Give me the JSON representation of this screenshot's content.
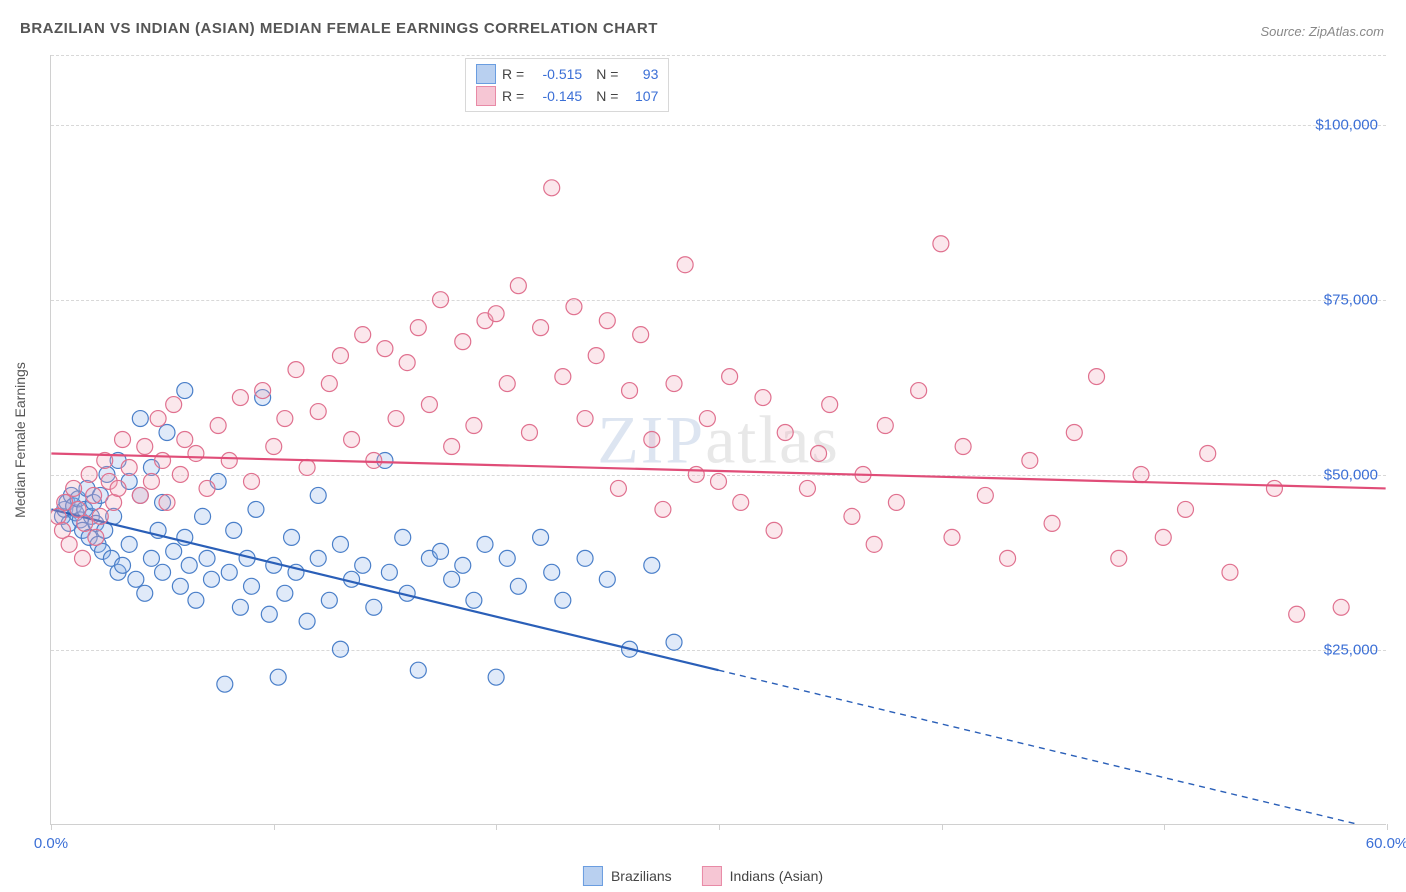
{
  "title": "BRAZILIAN VS INDIAN (ASIAN) MEDIAN FEMALE EARNINGS CORRELATION CHART",
  "source_label": "Source: ZipAtlas.com",
  "y_axis_label": "Median Female Earnings",
  "watermark_bold": "ZIP",
  "watermark_thin": "atlas",
  "chart": {
    "type": "scatter",
    "xlim": [
      0,
      60
    ],
    "ylim": [
      0,
      110000
    ],
    "x_tick_positions": [
      0,
      10,
      20,
      30,
      40,
      50,
      60
    ],
    "x_tick_labels": {
      "0": "0.0%",
      "60": "60.0%"
    },
    "y_gridlines": [
      25000,
      50000,
      75000,
      100000,
      110000
    ],
    "y_tick_labels": {
      "25000": "$25,000",
      "50000": "$50,000",
      "75000": "$75,000",
      "100000": "$100,000"
    },
    "background_color": "#ffffff",
    "grid_color": "#d8d8d8",
    "axis_color": "#d0d0d0",
    "tick_label_color": "#3b6fd6",
    "marker_radius": 8,
    "marker_stroke_width": 1.2,
    "marker_fill_opacity": 0.28,
    "trend_line_width": 2.2,
    "trend_dash_pattern": "6,5"
  },
  "legend_top": {
    "r_label": "R =",
    "n_label": "N =",
    "rows": [
      {
        "swatch_fill": "#b9d0f0",
        "swatch_stroke": "#6a9de0",
        "r": "-0.515",
        "n": "93"
      },
      {
        "swatch_fill": "#f6c6d4",
        "swatch_stroke": "#e88aa6",
        "r": "-0.145",
        "n": "107"
      }
    ]
  },
  "legend_bottom": [
    {
      "swatch_fill": "#b9d0f0",
      "swatch_stroke": "#6a9de0",
      "label": "Brazilians"
    },
    {
      "swatch_fill": "#f6c6d4",
      "swatch_stroke": "#e88aa6",
      "label": "Indians (Asian)"
    }
  ],
  "series": [
    {
      "name": "Brazilians",
      "marker_fill": "#8fb5e8",
      "marker_stroke": "#4a7fc9",
      "trend_color": "#2a5fb8",
      "trend_solid": {
        "x1": 0,
        "y1": 45000,
        "x2": 30,
        "y2": 22000
      },
      "trend_dashed": {
        "x1": 30,
        "y1": 22000,
        "x2": 60,
        "y2": -1000
      },
      "points": [
        [
          0.5,
          44000
        ],
        [
          0.6,
          45000
        ],
        [
          0.7,
          46000
        ],
        [
          0.8,
          43000
        ],
        [
          0.9,
          47000
        ],
        [
          1.0,
          45500
        ],
        [
          1.1,
          44500
        ],
        [
          1.2,
          46500
        ],
        [
          1.3,
          43500
        ],
        [
          1.4,
          42000
        ],
        [
          1.5,
          45000
        ],
        [
          1.6,
          48000
        ],
        [
          1.7,
          41000
        ],
        [
          1.8,
          44000
        ],
        [
          1.9,
          46000
        ],
        [
          2.0,
          43000
        ],
        [
          2.1,
          40000
        ],
        [
          2.2,
          47000
        ],
        [
          2.3,
          39000
        ],
        [
          2.4,
          42000
        ],
        [
          2.5,
          50000
        ],
        [
          2.7,
          38000
        ],
        [
          2.8,
          44000
        ],
        [
          3.0,
          52000
        ],
        [
          3.0,
          36000
        ],
        [
          3.2,
          37000
        ],
        [
          3.5,
          49000
        ],
        [
          3.5,
          40000
        ],
        [
          3.8,
          35000
        ],
        [
          4.0,
          47000
        ],
        [
          4.0,
          58000
        ],
        [
          4.2,
          33000
        ],
        [
          4.5,
          38000
        ],
        [
          4.5,
          51000
        ],
        [
          4.8,
          42000
        ],
        [
          5.0,
          36000
        ],
        [
          5.0,
          46000
        ],
        [
          5.2,
          56000
        ],
        [
          5.5,
          39000
        ],
        [
          5.8,
          34000
        ],
        [
          6.0,
          62000
        ],
        [
          6.0,
          41000
        ],
        [
          6.2,
          37000
        ],
        [
          6.5,
          32000
        ],
        [
          6.8,
          44000
        ],
        [
          7.0,
          38000
        ],
        [
          7.2,
          35000
        ],
        [
          7.5,
          49000
        ],
        [
          7.8,
          20000
        ],
        [
          8.0,
          36000
        ],
        [
          8.2,
          42000
        ],
        [
          8.5,
          31000
        ],
        [
          8.8,
          38000
        ],
        [
          9.0,
          34000
        ],
        [
          9.2,
          45000
        ],
        [
          9.5,
          61000
        ],
        [
          9.8,
          30000
        ],
        [
          10.0,
          37000
        ],
        [
          10.2,
          21000
        ],
        [
          10.5,
          33000
        ],
        [
          10.8,
          41000
        ],
        [
          11.0,
          36000
        ],
        [
          11.5,
          29000
        ],
        [
          12.0,
          38000
        ],
        [
          12.0,
          47000
        ],
        [
          12.5,
          32000
        ],
        [
          13.0,
          40000
        ],
        [
          13.0,
          25000
        ],
        [
          13.5,
          35000
        ],
        [
          14.0,
          37000
        ],
        [
          14.5,
          31000
        ],
        [
          15.0,
          52000
        ],
        [
          15.2,
          36000
        ],
        [
          15.8,
          41000
        ],
        [
          16.0,
          33000
        ],
        [
          16.5,
          22000
        ],
        [
          17.0,
          38000
        ],
        [
          17.5,
          39000
        ],
        [
          18.0,
          35000
        ],
        [
          18.5,
          37000
        ],
        [
          19.0,
          32000
        ],
        [
          19.5,
          40000
        ],
        [
          20.0,
          21000
        ],
        [
          20.5,
          38000
        ],
        [
          21.0,
          34000
        ],
        [
          22.0,
          41000
        ],
        [
          22.5,
          36000
        ],
        [
          23.0,
          32000
        ],
        [
          24.0,
          38000
        ],
        [
          25.0,
          35000
        ],
        [
          26.0,
          25000
        ],
        [
          27.0,
          37000
        ],
        [
          28.0,
          26000
        ]
      ]
    },
    {
      "name": "Indians (Asian)",
      "marker_fill": "#f2a8bc",
      "marker_stroke": "#e0718f",
      "trend_color": "#e04d78",
      "trend_solid": {
        "x1": 0,
        "y1": 53000,
        "x2": 60,
        "y2": 48000
      },
      "trend_dashed": null,
      "points": [
        [
          0.3,
          44000
        ],
        [
          0.5,
          42000
        ],
        [
          0.6,
          46000
        ],
        [
          0.8,
          40000
        ],
        [
          1.0,
          48000
        ],
        [
          1.2,
          45000
        ],
        [
          1.4,
          38000
        ],
        [
          1.5,
          43000
        ],
        [
          1.7,
          50000
        ],
        [
          1.9,
          47000
        ],
        [
          2.0,
          41000
        ],
        [
          2.2,
          44000
        ],
        [
          2.4,
          52000
        ],
        [
          2.6,
          49000
        ],
        [
          2.8,
          46000
        ],
        [
          3.0,
          48000
        ],
        [
          3.2,
          55000
        ],
        [
          3.5,
          51000
        ],
        [
          4.0,
          47000
        ],
        [
          4.2,
          54000
        ],
        [
          4.5,
          49000
        ],
        [
          4.8,
          58000
        ],
        [
          5.0,
          52000
        ],
        [
          5.2,
          46000
        ],
        [
          5.5,
          60000
        ],
        [
          5.8,
          50000
        ],
        [
          6.0,
          55000
        ],
        [
          6.5,
          53000
        ],
        [
          7.0,
          48000
        ],
        [
          7.5,
          57000
        ],
        [
          8.0,
          52000
        ],
        [
          8.5,
          61000
        ],
        [
          9.0,
          49000
        ],
        [
          9.5,
          62000
        ],
        [
          10.0,
          54000
        ],
        [
          10.5,
          58000
        ],
        [
          11.0,
          65000
        ],
        [
          11.5,
          51000
        ],
        [
          12.0,
          59000
        ],
        [
          12.5,
          63000
        ],
        [
          13.0,
          67000
        ],
        [
          13.5,
          55000
        ],
        [
          14.0,
          70000
        ],
        [
          14.5,
          52000
        ],
        [
          15.0,
          68000
        ],
        [
          15.5,
          58000
        ],
        [
          16.0,
          66000
        ],
        [
          16.5,
          71000
        ],
        [
          17.0,
          60000
        ],
        [
          17.5,
          75000
        ],
        [
          18.0,
          54000
        ],
        [
          18.5,
          69000
        ],
        [
          19.0,
          57000
        ],
        [
          19.5,
          72000
        ],
        [
          20.0,
          73000
        ],
        [
          20.5,
          63000
        ],
        [
          21.0,
          77000
        ],
        [
          21.5,
          56000
        ],
        [
          22.0,
          71000
        ],
        [
          22.5,
          91000
        ],
        [
          23.0,
          64000
        ],
        [
          23.5,
          74000
        ],
        [
          24.0,
          58000
        ],
        [
          24.5,
          67000
        ],
        [
          25.0,
          72000
        ],
        [
          25.5,
          48000
        ],
        [
          26.0,
          62000
        ],
        [
          26.5,
          70000
        ],
        [
          27.0,
          55000
        ],
        [
          27.5,
          45000
        ],
        [
          28.0,
          63000
        ],
        [
          28.5,
          80000
        ],
        [
          29.0,
          50000
        ],
        [
          29.5,
          58000
        ],
        [
          30.0,
          49000
        ],
        [
          30.5,
          64000
        ],
        [
          31.0,
          46000
        ],
        [
          32.0,
          61000
        ],
        [
          32.5,
          42000
        ],
        [
          33.0,
          56000
        ],
        [
          34.0,
          48000
        ],
        [
          34.5,
          53000
        ],
        [
          35.0,
          60000
        ],
        [
          36.0,
          44000
        ],
        [
          36.5,
          50000
        ],
        [
          37.0,
          40000
        ],
        [
          37.5,
          57000
        ],
        [
          38.0,
          46000
        ],
        [
          39.0,
          62000
        ],
        [
          40.0,
          83000
        ],
        [
          40.5,
          41000
        ],
        [
          41.0,
          54000
        ],
        [
          42.0,
          47000
        ],
        [
          43.0,
          38000
        ],
        [
          44.0,
          52000
        ],
        [
          45.0,
          43000
        ],
        [
          46.0,
          56000
        ],
        [
          47.0,
          64000
        ],
        [
          48.0,
          38000
        ],
        [
          49.0,
          50000
        ],
        [
          50.0,
          41000
        ],
        [
          51.0,
          45000
        ],
        [
          52.0,
          53000
        ],
        [
          53.0,
          36000
        ],
        [
          55.0,
          48000
        ],
        [
          56.0,
          30000
        ],
        [
          58.0,
          31000
        ]
      ]
    }
  ]
}
